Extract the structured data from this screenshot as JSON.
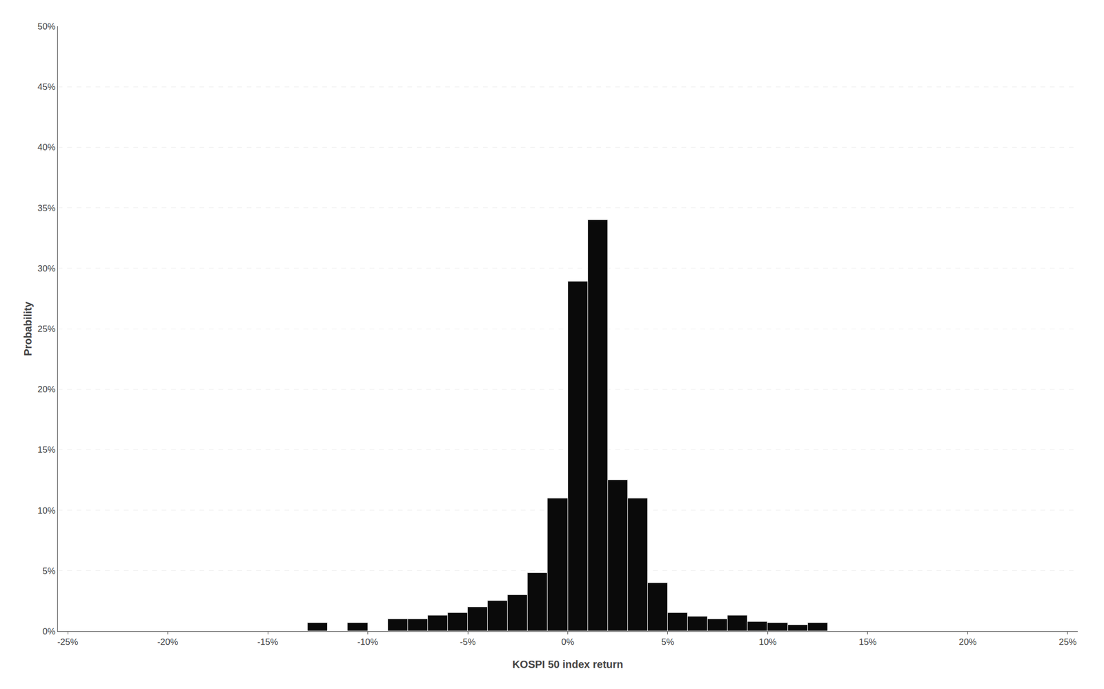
{
  "chart_data": {
    "type": "histogram",
    "xlabel": "KOSPI 50 index return",
    "ylabel": "Probability",
    "bins": [
      -0.13,
      -0.12,
      -0.11,
      -0.1,
      -0.09,
      -0.08,
      -0.07,
      -0.06,
      -0.05,
      -0.04,
      -0.03,
      -0.02,
      -0.01,
      0.0,
      0.01,
      0.02,
      0.03,
      0.04,
      0.05,
      0.06,
      0.07,
      0.08,
      0.09,
      0.1,
      0.11,
      0.12,
      0.13
    ],
    "values": [
      0.007,
      0.0,
      0.007,
      0.0,
      0.01,
      0.01,
      0.013,
      0.015,
      0.02,
      0.025,
      0.03,
      0.048,
      0.11,
      0.289,
      0.34,
      0.125,
      0.11,
      0.04,
      0.015,
      0.012,
      0.01,
      0.013,
      0.008,
      0.007,
      0.005,
      0.007
    ],
    "color": "#0a0a0a",
    "xlim": [
      -0.255,
      0.255
    ],
    "ylim": [
      0,
      0.5
    ],
    "xticks": [
      {
        "value": -0.25,
        "label": "-25%"
      },
      {
        "value": -0.2,
        "label": "-20%"
      },
      {
        "value": -0.15,
        "label": "-15%"
      },
      {
        "value": -0.1,
        "label": "-10%"
      },
      {
        "value": -0.05,
        "label": "-5%"
      },
      {
        "value": 0.0,
        "label": "0%"
      },
      {
        "value": 0.05,
        "label": "5%"
      },
      {
        "value": 0.1,
        "label": "10%"
      },
      {
        "value": 0.15,
        "label": "15%"
      },
      {
        "value": 0.2,
        "label": "20%"
      },
      {
        "value": 0.25,
        "label": "25%"
      }
    ],
    "yticks": [
      {
        "value": 0.0,
        "label": "0%"
      },
      {
        "value": 0.05,
        "label": "5%"
      },
      {
        "value": 0.1,
        "label": "10%"
      },
      {
        "value": 0.15,
        "label": "15%"
      },
      {
        "value": 0.2,
        "label": "20%"
      },
      {
        "value": 0.25,
        "label": "25%"
      },
      {
        "value": 0.3,
        "label": "30%"
      },
      {
        "value": 0.35,
        "label": "35%"
      },
      {
        "value": 0.4,
        "label": "40%"
      },
      {
        "value": 0.45,
        "label": "45%"
      },
      {
        "value": 0.5,
        "label": "50%"
      }
    ],
    "grid": true
  }
}
